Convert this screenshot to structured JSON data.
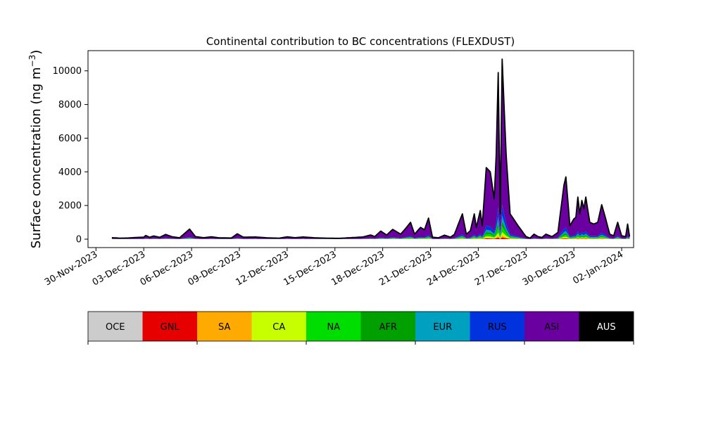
{
  "chart_data": {
    "type": "area",
    "stacked": true,
    "title": "Continental contribution to BC concentrations (FLEXDUST)",
    "ylabel_base": "Surface concentration (ng m",
    "ylabel_sup": "−3",
    "ylabel_close": ")",
    "xlabel": "",
    "ylim": [
      -500,
      11200
    ],
    "xlim_days": [
      "2023-11-29T12:00",
      "2024-01-02T18:00"
    ],
    "x_start": "2023-12-01",
    "x_step_days": 0.25,
    "yticks": [
      0,
      2000,
      4000,
      6000,
      8000,
      10000
    ],
    "ytick_labels": [
      "0",
      "2000",
      "4000",
      "6000",
      "8000",
      "10000"
    ],
    "xticks": [
      "2023-11-30",
      "2023-12-03",
      "2023-12-06",
      "2023-12-09",
      "2023-12-12",
      "2023-12-15",
      "2023-12-18",
      "2023-12-21",
      "2023-12-24",
      "2023-12-27",
      "2023-12-30",
      "2024-01-02"
    ],
    "xtick_labels": [
      "30-Nov-2023",
      "03-Dec-2023",
      "06-Dec-2023",
      "09-Dec-2023",
      "12-Dec-2023",
      "15-Dec-2023",
      "18-Dec-2023",
      "21-Dec-2023",
      "24-Dec-2023",
      "27-Dec-2023",
      "30-Dec-2023",
      "02-Jan-2024"
    ],
    "grid": false,
    "total_profile": [
      [
        "2023-12-01T00",
        90
      ],
      [
        "2023-12-01T12",
        60
      ],
      [
        "2023-12-02T00",
        70
      ],
      [
        "2023-12-02T12",
        100
      ],
      [
        "2023-12-03T00",
        120
      ],
      [
        "2023-12-03T03",
        220
      ],
      [
        "2023-12-03T09",
        110
      ],
      [
        "2023-12-03T15",
        190
      ],
      [
        "2023-12-04T00",
        110
      ],
      [
        "2023-12-04T09",
        280
      ],
      [
        "2023-12-04T18",
        150
      ],
      [
        "2023-12-05T06",
        80
      ],
      [
        "2023-12-05T21",
        600
      ],
      [
        "2023-12-06T06",
        150
      ],
      [
        "2023-12-06T18",
        90
      ],
      [
        "2023-12-07T06",
        140
      ],
      [
        "2023-12-07T18",
        80
      ],
      [
        "2023-12-08T12",
        70
      ],
      [
        "2023-12-08T21",
        320
      ],
      [
        "2023-12-09T06",
        120
      ],
      [
        "2023-12-10T00",
        130
      ],
      [
        "2023-12-10T18",
        80
      ],
      [
        "2023-12-11T12",
        60
      ],
      [
        "2023-12-12T00",
        140
      ],
      [
        "2023-12-12T12",
        90
      ],
      [
        "2023-12-13T00",
        130
      ],
      [
        "2023-12-13T18",
        80
      ],
      [
        "2023-12-14T12",
        60
      ],
      [
        "2023-12-15T06",
        50
      ],
      [
        "2023-12-16T00",
        90
      ],
      [
        "2023-12-16T18",
        130
      ],
      [
        "2023-12-17T06",
        250
      ],
      [
        "2023-12-17T12",
        150
      ],
      [
        "2023-12-17T21",
        480
      ],
      [
        "2023-12-18T06",
        250
      ],
      [
        "2023-12-18T15",
        580
      ],
      [
        "2023-12-19T03",
        300
      ],
      [
        "2023-12-19T09",
        560
      ],
      [
        "2023-12-19T18",
        1000
      ],
      [
        "2023-12-20T00",
        300
      ],
      [
        "2023-12-20T09",
        700
      ],
      [
        "2023-12-20T15",
        560
      ],
      [
        "2023-12-20T21",
        1250
      ],
      [
        "2023-12-21T03",
        120
      ],
      [
        "2023-12-21T12",
        80
      ],
      [
        "2023-12-21T21",
        240
      ],
      [
        "2023-12-22T06",
        120
      ],
      [
        "2023-12-22T12",
        280
      ],
      [
        "2023-12-22T18",
        900
      ],
      [
        "2023-12-23T00",
        1500
      ],
      [
        "2023-12-23T06",
        300
      ],
      [
        "2023-12-23T12",
        500
      ],
      [
        "2023-12-23T18",
        1500
      ],
      [
        "2023-12-23T21",
        700
      ],
      [
        "2023-12-24T03",
        1700
      ],
      [
        "2023-12-24T06",
        800
      ],
      [
        "2023-12-24T12",
        4250
      ],
      [
        "2023-12-24T18",
        4000
      ],
      [
        "2023-12-25T00",
        2400
      ],
      [
        "2023-12-25T03",
        5000
      ],
      [
        "2023-12-25T06",
        9900
      ],
      [
        "2023-12-25T09",
        1500
      ],
      [
        "2023-12-25T12",
        10700
      ],
      [
        "2023-12-25T18",
        5000
      ],
      [
        "2023-12-26T00",
        1500
      ],
      [
        "2023-12-26T12",
        800
      ],
      [
        "2023-12-27T00",
        150
      ],
      [
        "2023-12-27T06",
        60
      ],
      [
        "2023-12-27T12",
        300
      ],
      [
        "2023-12-27T18",
        150
      ],
      [
        "2023-12-28T00",
        100
      ],
      [
        "2023-12-28T06",
        300
      ],
      [
        "2023-12-28T15",
        150
      ],
      [
        "2023-12-29T00",
        400
      ],
      [
        "2023-12-29T09",
        3200
      ],
      [
        "2023-12-29T12",
        3700
      ],
      [
        "2023-12-29T18",
        800
      ],
      [
        "2023-12-30T00",
        1200
      ],
      [
        "2023-12-30T03",
        1300
      ],
      [
        "2023-12-30T06",
        2500
      ],
      [
        "2023-12-30T09",
        1500
      ],
      [
        "2023-12-30T12",
        2300
      ],
      [
        "2023-12-30T15",
        1800
      ],
      [
        "2023-12-30T18",
        2500
      ],
      [
        "2023-12-31T00",
        1000
      ],
      [
        "2023-12-31T06",
        900
      ],
      [
        "2023-12-31T12",
        1000
      ],
      [
        "2023-12-31T18",
        2050
      ],
      [
        "2024-01-01T00",
        1200
      ],
      [
        "2024-01-01T06",
        300
      ],
      [
        "2024-01-01T12",
        200
      ],
      [
        "2024-01-01T18",
        1000
      ],
      [
        "2024-01-02T00",
        200
      ],
      [
        "2024-01-02T06",
        150
      ],
      [
        "2024-01-02T09",
        900
      ],
      [
        "2024-01-02T12",
        150
      ]
    ],
    "series": [
      {
        "name": "OCE",
        "color": "#cccccc",
        "fraction": 0.0
      },
      {
        "name": "GNL",
        "color": "#e60000",
        "fraction": 0.01
      },
      {
        "name": "SA",
        "color": "#ffaa00",
        "fraction": 0.01
      },
      {
        "name": "CA",
        "color": "#c8ff00",
        "fraction": 0.02
      },
      {
        "name": "NA",
        "color": "#00dd00",
        "fraction": 0.03
      },
      {
        "name": "AFR",
        "color": "#00a000",
        "fraction": 0.03
      },
      {
        "name": "EUR",
        "color": "#00a0c0",
        "fraction": 0.03
      },
      {
        "name": "RUS",
        "color": "#0033dd",
        "fraction": 0.06
      },
      {
        "name": "ASI",
        "color": "#6a009f",
        "fraction": 0.81
      },
      {
        "name": "AUS",
        "color": "#000000",
        "fraction": 0.0
      }
    ],
    "legend_text_colors": [
      "#000000",
      "#000000",
      "#000000",
      "#000000",
      "#000000",
      "#000000",
      "#000000",
      "#000000",
      "#000000",
      "#ffffff"
    ]
  }
}
